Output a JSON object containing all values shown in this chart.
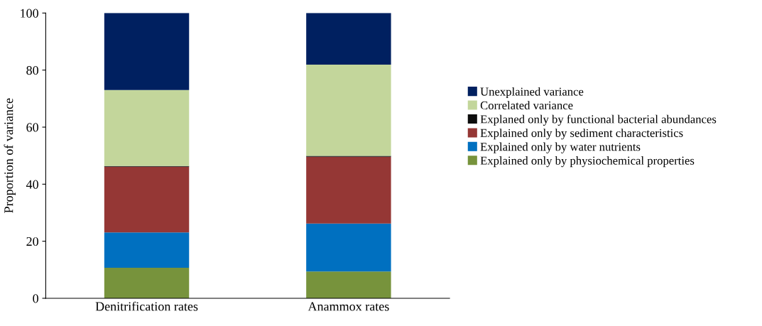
{
  "chart_data": {
    "type": "bar",
    "stacked": true,
    "ylabel": "Proportion of variance",
    "categories": [
      "Denitrification rates",
      "Anammox rates"
    ],
    "series": [
      {
        "name": "Explained only by physiochemical properties",
        "color": "#77933c",
        "values": [
          10.7,
          9.4
        ]
      },
      {
        "name": "Explained only by water nutrients",
        "color": "#0070c0",
        "values": [
          12.4,
          16.8
        ]
      },
      {
        "name": "Explained only by sediment characteristics",
        "color": "#953735",
        "values": [
          23.0,
          23.4
        ]
      },
      {
        "name": "Explaned only by functional bacterial abundances",
        "color": "#0d0d0d",
        "values": [
          0.3,
          0.3
        ]
      },
      {
        "name": "Correlated variance",
        "color": "#c3d69b",
        "values": [
          26.6,
          32.0
        ]
      },
      {
        "name": "Unexplained variance",
        "color": "#002060",
        "values": [
          27.0,
          18.1
        ]
      }
    ],
    "ylim": [
      0,
      100
    ],
    "yticks": [
      0,
      20,
      40,
      60,
      80,
      100
    ],
    "grid": false,
    "legend": "right"
  }
}
